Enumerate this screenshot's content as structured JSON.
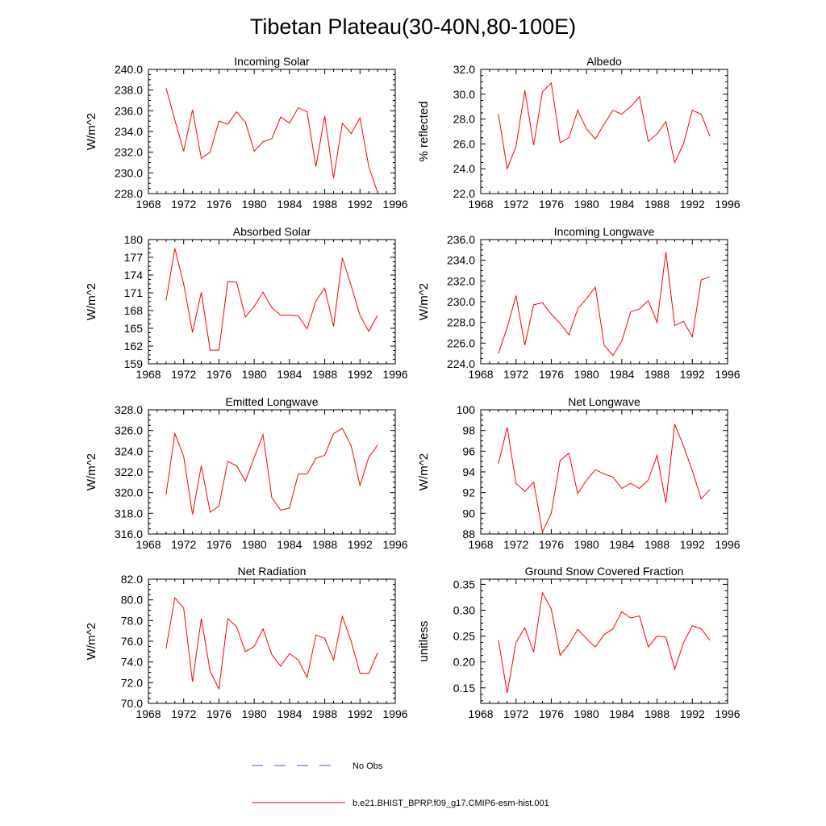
{
  "figure_title": "Tibetan Plateau(30-40N,80-100E)",
  "series_colors": {
    "model": "#ff0000",
    "obs": "#5050d0"
  },
  "legend": [
    {
      "label": "No Obs",
      "style": "dashed",
      "color": "#5050d0"
    },
    {
      "label": "b.e21.BHIST_BPRP.f09_g17.CMIP6-esm-hist.001",
      "style": "solid",
      "color": "#ff0000"
    }
  ],
  "chart_data": [
    {
      "type": "line",
      "title": "Incoming Solar",
      "ylabel": "W/m^2",
      "xlim": [
        1968,
        1996
      ],
      "ylim": [
        228,
        240
      ],
      "xticks": [
        1968,
        1972,
        1976,
        1980,
        1984,
        1988,
        1992,
        1996
      ],
      "xtick_labels": [
        "1968",
        "1972",
        "1976",
        "1980",
        "1984",
        "1988",
        "1992",
        "1996"
      ],
      "yticks": [
        228,
        230,
        232,
        234,
        236,
        238,
        240
      ],
      "ytick_labels": [
        "228.0",
        "230.0",
        "232.0",
        "234.0",
        "236.0",
        "238.0",
        "240.0"
      ],
      "x": [
        1970,
        1971,
        1972,
        1973,
        1974,
        1975,
        1976,
        1977,
        1978,
        1979,
        1980,
        1981,
        1982,
        1983,
        1984,
        1985,
        1986,
        1987,
        1988,
        1989,
        1990,
        1991,
        1992,
        1993,
        1994
      ],
      "series": [
        {
          "name": "b.e21.BHIST_BPRP.f09_g17.CMIP6-esm-hist.001",
          "values": [
            238.2,
            235.1,
            232.1,
            236.1,
            231.4,
            232.0,
            235.0,
            234.7,
            235.9,
            234.9,
            232.1,
            233.0,
            233.3,
            235.4,
            234.8,
            236.3,
            235.9,
            230.6,
            235.5,
            229.5,
            234.8,
            233.8,
            235.3,
            230.6,
            228.1
          ]
        }
      ]
    },
    {
      "type": "line",
      "title": "Albedo",
      "ylabel": "% reflected",
      "xlim": [
        1968,
        1996
      ],
      "ylim": [
        22,
        32
      ],
      "xticks": [
        1968,
        1972,
        1976,
        1980,
        1984,
        1988,
        1992,
        1996
      ],
      "xtick_labels": [
        "1968",
        "1972",
        "1976",
        "1980",
        "1984",
        "1988",
        "1992",
        "1996"
      ],
      "yticks": [
        22,
        24,
        26,
        28,
        30,
        32
      ],
      "ytick_labels": [
        "22.0",
        "24.0",
        "26.0",
        "28.0",
        "30.0",
        "32.0"
      ],
      "x": [
        1970,
        1971,
        1972,
        1973,
        1974,
        1975,
        1976,
        1977,
        1978,
        1979,
        1980,
        1981,
        1982,
        1983,
        1984,
        1985,
        1986,
        1987,
        1988,
        1989,
        1990,
        1991,
        1992,
        1993,
        1994
      ],
      "series": [
        {
          "name": "b.e21.BHIST_BPRP.f09_g17.CMIP6-esm-hist.001",
          "values": [
            28.4,
            24.0,
            25.8,
            30.3,
            25.9,
            30.2,
            30.9,
            26.1,
            26.5,
            28.7,
            27.2,
            26.4,
            27.6,
            28.7,
            28.4,
            29.0,
            29.8,
            26.2,
            26.8,
            27.8,
            24.5,
            26.0,
            28.7,
            28.4,
            26.6
          ]
        }
      ]
    },
    {
      "type": "line",
      "title": "Absorbed Solar",
      "ylabel": "W/m^2",
      "xlim": [
        1968,
        1996
      ],
      "ylim": [
        159,
        180
      ],
      "xticks": [
        1968,
        1972,
        1976,
        1980,
        1984,
        1988,
        1992,
        1996
      ],
      "xtick_labels": [
        "1968",
        "1972",
        "1976",
        "1980",
        "1984",
        "1988",
        "1992",
        "1996"
      ],
      "yticks": [
        159,
        162,
        165,
        168,
        171,
        174,
        177,
        180
      ],
      "ytick_labels": [
        "159",
        "162",
        "165",
        "168",
        "171",
        "174",
        "177",
        "180"
      ],
      "x": [
        1970,
        1971,
        1972,
        1973,
        1974,
        1975,
        1976,
        1977,
        1978,
        1979,
        1980,
        1981,
        1982,
        1983,
        1984,
        1985,
        1986,
        1987,
        1988,
        1989,
        1990,
        1991,
        1992,
        1993,
        1994
      ],
      "series": [
        {
          "name": "b.e21.BHIST_BPRP.f09_g17.CMIP6-esm-hist.001",
          "values": [
            169.7,
            178.5,
            172.5,
            164.3,
            171.1,
            161.3,
            161.3,
            172.9,
            172.8,
            166.9,
            168.7,
            171.1,
            168.5,
            167.2,
            167.2,
            167.1,
            164.9,
            169.6,
            171.8,
            165.3,
            176.9,
            172.2,
            167.2,
            164.5,
            167.2
          ]
        }
      ]
    },
    {
      "type": "line",
      "title": "Incoming Longwave",
      "ylabel": "W/m^2",
      "xlim": [
        1968,
        1996
      ],
      "ylim": [
        224,
        236
      ],
      "xticks": [
        1968,
        1972,
        1976,
        1980,
        1984,
        1988,
        1992,
        1996
      ],
      "xtick_labels": [
        "1968",
        "1972",
        "1976",
        "1980",
        "1984",
        "1988",
        "1992",
        "1996"
      ],
      "yticks": [
        224,
        226,
        228,
        230,
        232,
        234,
        236
      ],
      "ytick_labels": [
        "224.0",
        "226.0",
        "228.0",
        "230.0",
        "232.0",
        "234.0",
        "236.0"
      ],
      "x": [
        1970,
        1971,
        1972,
        1973,
        1974,
        1975,
        1976,
        1977,
        1978,
        1979,
        1980,
        1981,
        1982,
        1983,
        1984,
        1985,
        1986,
        1987,
        1988,
        1989,
        1990,
        1991,
        1992,
        1993,
        1994
      ],
      "series": [
        {
          "name": "b.e21.BHIST_BPRP.f09_g17.CMIP6-esm-hist.001",
          "values": [
            225.0,
            227.5,
            230.6,
            225.8,
            229.7,
            229.9,
            228.8,
            227.9,
            226.8,
            229.3,
            230.3,
            231.4,
            225.8,
            224.8,
            226.2,
            229.0,
            229.3,
            230.1,
            228.0,
            234.8,
            227.7,
            228.1,
            226.6,
            232.1,
            232.4
          ]
        }
      ]
    },
    {
      "type": "line",
      "title": "Emitted Longwave",
      "ylabel": "W/m^2",
      "xlim": [
        1968,
        1996
      ],
      "ylim": [
        316,
        328
      ],
      "xticks": [
        1968,
        1972,
        1976,
        1980,
        1984,
        1988,
        1992,
        1996
      ],
      "xtick_labels": [
        "1968",
        "1972",
        "1976",
        "1980",
        "1984",
        "1988",
        "1992",
        "1996"
      ],
      "yticks": [
        316,
        318,
        320,
        322,
        324,
        326,
        328
      ],
      "ytick_labels": [
        "316.0",
        "318.0",
        "320.0",
        "322.0",
        "324.0",
        "326.0",
        "328.0"
      ],
      "x": [
        1970,
        1971,
        1972,
        1973,
        1974,
        1975,
        1976,
        1977,
        1978,
        1979,
        1980,
        1981,
        1982,
        1983,
        1984,
        1985,
        1986,
        1987,
        1988,
        1989,
        1990,
        1991,
        1992,
        1993,
        1994
      ],
      "series": [
        {
          "name": "b.e21.BHIST_BPRP.f09_g17.CMIP6-esm-hist.001",
          "values": [
            319.8,
            325.7,
            323.5,
            317.9,
            322.6,
            318.1,
            318.7,
            323.0,
            322.6,
            321.1,
            323.4,
            325.6,
            319.5,
            318.3,
            318.5,
            321.8,
            321.8,
            323.3,
            323.6,
            325.7,
            326.2,
            324.5,
            320.7,
            323.4,
            324.6
          ]
        }
      ]
    },
    {
      "type": "line",
      "title": "Net Longwave",
      "ylabel": "W/m^2",
      "xlim": [
        1968,
        1996
      ],
      "ylim": [
        88,
        100
      ],
      "xticks": [
        1968,
        1972,
        1976,
        1980,
        1984,
        1988,
        1992,
        1996
      ],
      "xtick_labels": [
        "1968",
        "1972",
        "1976",
        "1980",
        "1984",
        "1988",
        "1992",
        "1996"
      ],
      "yticks": [
        88,
        90,
        92,
        94,
        96,
        98,
        100
      ],
      "ytick_labels": [
        "88",
        "90",
        "92",
        "94",
        "96",
        "98",
        "100"
      ],
      "x": [
        1970,
        1971,
        1972,
        1973,
        1974,
        1975,
        1976,
        1977,
        1978,
        1979,
        1980,
        1981,
        1982,
        1983,
        1984,
        1985,
        1986,
        1987,
        1988,
        1989,
        1990,
        1991,
        1992,
        1993,
        1994
      ],
      "series": [
        {
          "name": "b.e21.BHIST_BPRP.f09_g17.CMIP6-esm-hist.001",
          "values": [
            94.8,
            98.3,
            92.9,
            92.1,
            93.0,
            88.2,
            90.0,
            95.1,
            95.8,
            91.9,
            93.2,
            94.2,
            93.8,
            93.5,
            92.4,
            92.9,
            92.4,
            93.2,
            95.6,
            91.0,
            98.6,
            96.5,
            94.1,
            91.4,
            92.3
          ]
        }
      ]
    },
    {
      "type": "line",
      "title": "Net Radiation",
      "ylabel": "W/m^2",
      "xlim": [
        1968,
        1996
      ],
      "ylim": [
        70,
        82
      ],
      "xticks": [
        1968,
        1972,
        1976,
        1980,
        1984,
        1988,
        1992,
        1996
      ],
      "xtick_labels": [
        "1968",
        "1972",
        "1976",
        "1980",
        "1984",
        "1988",
        "1992",
        "1996"
      ],
      "yticks": [
        70,
        72,
        74,
        76,
        78,
        80,
        82
      ],
      "ytick_labels": [
        "70.0",
        "72.0",
        "74.0",
        "76.0",
        "78.0",
        "80.0",
        "82.0"
      ],
      "x": [
        1970,
        1971,
        1972,
        1973,
        1974,
        1975,
        1976,
        1977,
        1978,
        1979,
        1980,
        1981,
        1982,
        1983,
        1984,
        1985,
        1986,
        1987,
        1988,
        1989,
        1990,
        1991,
        1992,
        1993,
        1994
      ],
      "series": [
        {
          "name": "b.e21.BHIST_BPRP.f09_g17.CMIP6-esm-hist.001",
          "values": [
            75.3,
            80.2,
            79.2,
            72.1,
            78.2,
            73.1,
            71.4,
            78.2,
            77.4,
            75.0,
            75.5,
            77.2,
            74.7,
            73.6,
            74.8,
            74.2,
            72.5,
            76.6,
            76.3,
            74.2,
            78.4,
            76.0,
            72.9,
            72.9,
            74.9
          ]
        }
      ]
    },
    {
      "type": "line",
      "title": "Ground Snow Covered Fraction",
      "ylabel": "unitless",
      "xlim": [
        1968,
        1996
      ],
      "ylim": [
        0.12,
        0.36
      ],
      "xticks": [
        1968,
        1972,
        1976,
        1980,
        1984,
        1988,
        1992,
        1996
      ],
      "xtick_labels": [
        "1968",
        "1972",
        "1976",
        "1980",
        "1984",
        "1988",
        "1992",
        "1996"
      ],
      "yticks": [
        0.15,
        0.2,
        0.25,
        0.3,
        0.35
      ],
      "ytick_labels": [
        "0.15",
        "0.20",
        "0.25",
        "0.30",
        "0.35"
      ],
      "x": [
        1970,
        1971,
        1972,
        1973,
        1974,
        1975,
        1976,
        1977,
        1978,
        1979,
        1980,
        1981,
        1982,
        1983,
        1984,
        1985,
        1986,
        1987,
        1988,
        1989,
        1990,
        1991,
        1992,
        1993,
        1994
      ],
      "series": [
        {
          "name": "b.e21.BHIST_BPRP.f09_g17.CMIP6-esm-hist.001",
          "values": [
            0.242,
            0.14,
            0.238,
            0.266,
            0.219,
            0.334,
            0.302,
            0.213,
            0.234,
            0.263,
            0.245,
            0.229,
            0.253,
            0.264,
            0.297,
            0.285,
            0.289,
            0.229,
            0.25,
            0.248,
            0.186,
            0.237,
            0.27,
            0.264,
            0.242
          ]
        }
      ]
    }
  ]
}
